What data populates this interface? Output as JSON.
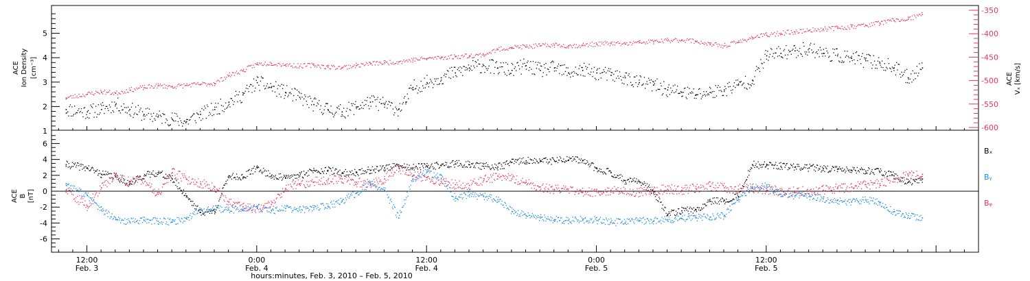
{
  "chart_data": [
    {
      "type": "scatter",
      "panel": "top",
      "ylabel": [
        "ACE",
        "Ion Density",
        "[cm⁻³]"
      ],
      "y2label": [
        "ACE",
        "Vₓ [km/s]"
      ],
      "ylim": [
        1,
        6
      ],
      "yticks": [
        "1",
        "2",
        "3",
        "4",
        "5"
      ],
      "y2lim": [
        -600,
        -350
      ],
      "y2ticks": [
        "-600",
        "-550",
        "-500",
        "-450",
        "-400",
        "-350"
      ],
      "series": [
        {
          "axis": "left",
          "color": "#000000",
          "x": [
            -1.5,
            0,
            1,
            2,
            3,
            4,
            5,
            6,
            7,
            8,
            9,
            10,
            11,
            12,
            13,
            14,
            15,
            16,
            17,
            18,
            19,
            20,
            21,
            22,
            22.5,
            23,
            24,
            25,
            26,
            27,
            28,
            29,
            30,
            31,
            32,
            33,
            34,
            35,
            36,
            37,
            38,
            39,
            40,
            41,
            42,
            43,
            44,
            45,
            46,
            47,
            48,
            49,
            50,
            51,
            52,
            53,
            54,
            55,
            56,
            57,
            58,
            59
          ],
          "y": [
            1.9,
            1.8,
            1.9,
            2.1,
            1.9,
            1.7,
            1.6,
            1.5,
            1.4,
            1.7,
            1.9,
            2.2,
            2.5,
            3.0,
            2.8,
            2.6,
            2.4,
            2.1,
            1.9,
            1.8,
            2.0,
            2.2,
            2.1,
            1.9,
            2.2,
            2.8,
            3.0,
            3.2,
            3.4,
            3.6,
            3.7,
            3.6,
            3.5,
            3.7,
            3.5,
            3.6,
            3.4,
            3.5,
            3.4,
            3.3,
            3.2,
            3.0,
            2.9,
            2.7,
            2.6,
            2.5,
            2.6,
            2.7,
            2.9,
            3.1,
            4.1,
            4.2,
            4.3,
            4.4,
            4.2,
            4.1,
            4.0,
            3.9,
            3.8,
            3.6,
            3.2,
            3.6
          ]
        },
        {
          "axis": "right",
          "color": "#e8345c",
          "x": [
            -1.5,
            0,
            1,
            2,
            3,
            4,
            5,
            6,
            7,
            8,
            9,
            10,
            11,
            12,
            13,
            14,
            15,
            16,
            17,
            18,
            19,
            20,
            21,
            22,
            23,
            24,
            25,
            26,
            27,
            28,
            29,
            30,
            31,
            32,
            33,
            34,
            35,
            36,
            37,
            38,
            39,
            40,
            41,
            42,
            43,
            44,
            45,
            46,
            47,
            48,
            49,
            50,
            51,
            52,
            53,
            54,
            55,
            56,
            57,
            58,
            59
          ],
          "y": [
            -536,
            -528,
            -523,
            -526,
            -519,
            -514,
            -510,
            -512,
            -509,
            -507,
            -505,
            -488,
            -478,
            -464,
            -462,
            -465,
            -468,
            -466,
            -470,
            -471,
            -467,
            -463,
            -461,
            -459,
            -455,
            -452,
            -450,
            -448,
            -446,
            -444,
            -433,
            -428,
            -427,
            -425,
            -423,
            -425,
            -424,
            -421,
            -420,
            -421,
            -418,
            -416,
            -414,
            -412,
            -415,
            -422,
            -425,
            -417,
            -407,
            -402,
            -398,
            -395,
            -392,
            -389,
            -387,
            -384,
            -381,
            -376,
            -371,
            -368,
            -358
          ]
        }
      ]
    },
    {
      "type": "scatter",
      "panel": "bottom",
      "ylabel": [
        "ACE",
        "B",
        "[nT]"
      ],
      "ylim": [
        -7,
        7
      ],
      "yticks": [
        "-6",
        "-4",
        "-2",
        "0",
        "2",
        "4",
        "6"
      ],
      "legend": [
        "Bₓ",
        "Bᵧ",
        "Bᵩ"
      ],
      "legend_colors": [
        "#000000",
        "#1e88e5",
        "#e8345c"
      ],
      "series": [
        {
          "name": "Bₓ",
          "color": "#000000",
          "x": [
            -1.5,
            0,
            1,
            2,
            3,
            4,
            5,
            6,
            7,
            8,
            9,
            10,
            11,
            12,
            13,
            14,
            15,
            16,
            17,
            18,
            19,
            20,
            21,
            22,
            23,
            24,
            25,
            26,
            27,
            28,
            29,
            30,
            31,
            32,
            33,
            34,
            35,
            36,
            37,
            38,
            39,
            40,
            41,
            42,
            43,
            44,
            45,
            46,
            47,
            48,
            49,
            50,
            51,
            52,
            53,
            54,
            55,
            56,
            57,
            58,
            59
          ],
          "y": [
            3.4,
            3.0,
            2.2,
            1.9,
            1.0,
            2.0,
            2.4,
            1.6,
            -0.5,
            -2.6,
            -2.5,
            2.0,
            1.8,
            3.0,
            2.0,
            1.7,
            2.0,
            2.7,
            2.7,
            2.3,
            2.4,
            2.7,
            3.0,
            3.2,
            3.0,
            3.2,
            3.3,
            3.5,
            3.4,
            3.2,
            3.1,
            3.7,
            3.9,
            3.8,
            3.9,
            4.0,
            3.9,
            2.9,
            2.4,
            1.4,
            1.3,
            0.0,
            -2.9,
            -2.4,
            -2.3,
            -1.2,
            -1.1,
            -0.6,
            3.4,
            3.3,
            3.2,
            3.1,
            3.0,
            2.9,
            2.8,
            2.7,
            2.6,
            2.5,
            2.0,
            1.2,
            1.6
          ]
        },
        {
          "name": "Bᵧ",
          "color": "#1e88e5",
          "x": [
            -1.5,
            0,
            1,
            2,
            3,
            4,
            5,
            6,
            7,
            8,
            9,
            10,
            11,
            12,
            13,
            14,
            15,
            16,
            17,
            18,
            19,
            20,
            21,
            22,
            23,
            24,
            25,
            26,
            27,
            28,
            29,
            30,
            31,
            32,
            33,
            34,
            35,
            36,
            37,
            38,
            39,
            40,
            41,
            42,
            43,
            44,
            45,
            46,
            47,
            48,
            49,
            50,
            51,
            52,
            53,
            54,
            55,
            56,
            57,
            58,
            59
          ],
          "y": [
            1.0,
            -0.5,
            -2.3,
            -3.5,
            -3.8,
            -3.6,
            -3.7,
            -3.8,
            -3.4,
            -2.3,
            -2.2,
            -2.3,
            -2.2,
            -2.0,
            -2.4,
            -2.1,
            -2.3,
            -2.0,
            -1.8,
            -1.2,
            -0.2,
            1.0,
            0.2,
            -3.3,
            1.5,
            2.5,
            1.7,
            -0.8,
            -0.4,
            -0.6,
            -1.0,
            -2.5,
            -3.0,
            -3.3,
            -3.5,
            -3.6,
            -3.5,
            -3.6,
            -3.8,
            -3.9,
            -3.6,
            -3.7,
            -3.5,
            -3.4,
            -3.3,
            -3.2,
            -3.0,
            -1.0,
            0.6,
            0.7,
            -0.3,
            -0.5,
            -0.6,
            -0.9,
            -1.1,
            -1.3,
            -1.0,
            -1.4,
            -2.5,
            -3.0,
            -3.3
          ]
        },
        {
          "name": "Bᵩ",
          "color": "#e8345c",
          "x": [
            -1.5,
            0,
            1,
            2,
            3,
            4,
            5,
            6,
            7,
            8,
            9,
            10,
            11,
            12,
            13,
            14,
            15,
            16,
            17,
            18,
            19,
            20,
            21,
            22,
            23,
            24,
            25,
            26,
            27,
            28,
            29,
            30,
            31,
            32,
            33,
            34,
            35,
            36,
            37,
            38,
            39,
            40,
            41,
            42,
            43,
            44,
            45,
            46,
            47,
            48,
            49,
            50,
            51,
            52,
            53,
            54,
            55,
            56,
            57,
            58,
            59
          ],
          "y": [
            0.2,
            -1.8,
            0.5,
            2.1,
            1.2,
            1.6,
            -0.3,
            2.4,
            1.6,
            1.0,
            0.6,
            -1.3,
            -1.9,
            -2.1,
            -1.6,
            0.4,
            1.0,
            1.2,
            1.5,
            1.6,
            1.2,
            0.9,
            1.6,
            3.0,
            2.0,
            1.8,
            1.3,
            0.9,
            0.8,
            1.4,
            2.0,
            1.6,
            1.2,
            0.6,
            0.3,
            0.1,
            -0.1,
            0.0,
            0.2,
            0.1,
            -0.1,
            0.1,
            0.3,
            0.2,
            0.4,
            0.7,
            0.5,
            0.3,
            0.4,
            0.2,
            0.1,
            0.0,
            0.1,
            0.2,
            0.4,
            0.6,
            0.9,
            1.0,
            1.6,
            2.0,
            2.2
          ]
        }
      ]
    }
  ],
  "x_axis": {
    "range_hours": [
      -2.5,
      63
    ],
    "ticks": [
      {
        "hours": 0,
        "time": "12:00",
        "date": "Feb. 3"
      },
      {
        "hours": 12,
        "time": "0:00",
        "date": "Feb. 4"
      },
      {
        "hours": 24,
        "time": "12:00",
        "date": "Feb. 4"
      },
      {
        "hours": 36,
        "time": "0:00",
        "date": "Feb. 5"
      },
      {
        "hours": 48,
        "time": "12:00",
        "date": "Feb. 5"
      }
    ],
    "label": "hours:minutes, Feb.  3, 2010 – Feb.  5, 2010"
  }
}
